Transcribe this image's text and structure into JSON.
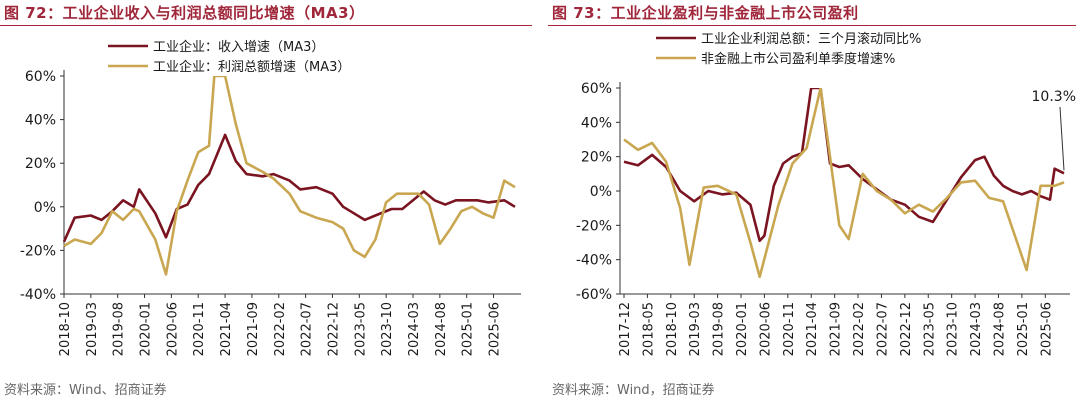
{
  "left": {
    "title": "图 72：工业企业收入与利润总额同比增速（MA3）",
    "source": "资料来源：Wind、招商证券"
  },
  "right": {
    "title": "图 73：工业企业盈利与非金融上市公司盈利",
    "source": "资料来源：Wind，招商证券"
  },
  "colors": {
    "series_a": "#7a1420",
    "series_b": "#c9a650",
    "title": "#a0263a"
  },
  "chart_data": [
    {
      "type": "line",
      "x_start": "2018-10",
      "x_end": "2025-10",
      "x_ticks": [
        "2018-10",
        "2019-03",
        "2019-08",
        "2020-01",
        "2020-06",
        "2020-11",
        "2021-04",
        "2021-09",
        "2022-02",
        "2022-07",
        "2022-12",
        "2023-05",
        "2023-10",
        "2024-03",
        "2024-08",
        "2025-01",
        "2025-06"
      ],
      "y_ticks": [
        "60%",
        "40%",
        "20%",
        "0%",
        "-20%",
        "-40%"
      ],
      "ylim": [
        -40,
        60
      ],
      "grid": false,
      "legend_position": "top-left",
      "series": [
        {
          "name": "工业企业：收入增速（MA3）",
          "color": "#7a1420",
          "points": [
            [
              "2018-10",
              -16
            ],
            [
              "2018-12",
              -5
            ],
            [
              "2019-03",
              -4
            ],
            [
              "2019-05",
              -6
            ],
            [
              "2019-07",
              -2
            ],
            [
              "2019-09",
              3
            ],
            [
              "2019-11",
              0
            ],
            [
              "2019-12",
              8
            ],
            [
              "2020-03",
              -3
            ],
            [
              "2020-05",
              -14
            ],
            [
              "2020-07",
              -1
            ],
            [
              "2020-09",
              1
            ],
            [
              "2020-11",
              10
            ],
            [
              "2021-01",
              15
            ],
            [
              "2021-04",
              33
            ],
            [
              "2021-06",
              21
            ],
            [
              "2021-08",
              15
            ],
            [
              "2021-11",
              14
            ],
            [
              "2022-01",
              15
            ],
            [
              "2022-04",
              12
            ],
            [
              "2022-06",
              8
            ],
            [
              "2022-09",
              9
            ],
            [
              "2022-12",
              6
            ],
            [
              "2023-02",
              0
            ],
            [
              "2023-04",
              -3
            ],
            [
              "2023-06",
              -6
            ],
            [
              "2023-08",
              -4
            ],
            [
              "2023-11",
              -1
            ],
            [
              "2024-01",
              -1
            ],
            [
              "2024-03",
              3
            ],
            [
              "2024-05",
              7
            ],
            [
              "2024-07",
              3
            ],
            [
              "2024-09",
              1
            ],
            [
              "2024-11",
              3
            ],
            [
              "2025-01",
              3
            ],
            [
              "2025-03",
              3
            ],
            [
              "2025-05",
              2
            ],
            [
              "2025-08",
              3
            ],
            [
              "2025-10",
              0
            ]
          ]
        },
        {
          "name": "工业企业：利润总额增速（MA3）",
          "color": "#c9a650",
          "points": [
            [
              "2018-10",
              -18
            ],
            [
              "2018-12",
              -15
            ],
            [
              "2019-03",
              -17
            ],
            [
              "2019-05",
              -12
            ],
            [
              "2019-07",
              -2
            ],
            [
              "2019-09",
              -6
            ],
            [
              "2019-11",
              -1
            ],
            [
              "2019-12",
              -2
            ],
            [
              "2020-03",
              -15
            ],
            [
              "2020-05",
              -31
            ],
            [
              "2020-07",
              -2
            ],
            [
              "2020-09",
              12
            ],
            [
              "2020-11",
              25
            ],
            [
              "2021-01",
              28
            ],
            [
              "2021-02",
              60
            ],
            [
              "2021-04",
              60
            ],
            [
              "2021-06",
              38
            ],
            [
              "2021-08",
              20
            ],
            [
              "2021-11",
              16
            ],
            [
              "2022-01",
              13
            ],
            [
              "2022-04",
              6
            ],
            [
              "2022-06",
              -2
            ],
            [
              "2022-09",
              -5
            ],
            [
              "2022-12",
              -7
            ],
            [
              "2023-02",
              -10
            ],
            [
              "2023-04",
              -20
            ],
            [
              "2023-06",
              -23
            ],
            [
              "2023-08",
              -15
            ],
            [
              "2023-10",
              2
            ],
            [
              "2023-12",
              6
            ],
            [
              "2024-02",
              6
            ],
            [
              "2024-04",
              6
            ],
            [
              "2024-06",
              1
            ],
            [
              "2024-08",
              -17
            ],
            [
              "2024-10",
              -10
            ],
            [
              "2024-12",
              -2
            ],
            [
              "2025-02",
              0
            ],
            [
              "2025-04",
              -3
            ],
            [
              "2025-06",
              -5
            ],
            [
              "2025-08",
              12
            ],
            [
              "2025-10",
              9
            ]
          ]
        }
      ]
    },
    {
      "type": "line",
      "x_start": "2017-12",
      "x_end": "2025-10",
      "x_ticks": [
        "2017-12",
        "2018-05",
        "2018-10",
        "2019-03",
        "2019-08",
        "2020-01",
        "2020-06",
        "2020-11",
        "2021-04",
        "2021-09",
        "2022-02",
        "2022-07",
        "2022-12",
        "2023-05",
        "2023-10",
        "2024-03",
        "2024-08",
        "2025-01",
        "2025-06"
      ],
      "y_ticks": [
        "60%",
        "40%",
        "20%",
        "0%",
        "-20%",
        "-40%",
        "-60%"
      ],
      "ylim": [
        -60,
        60
      ],
      "grid": false,
      "legend_position": "top-center",
      "annotation": "10.3%",
      "series": [
        {
          "name": "工业企业利润总额：三个月滚动同比%",
          "color": "#7a1420",
          "points": [
            [
              "2017-12",
              17
            ],
            [
              "2018-03",
              15
            ],
            [
              "2018-06",
              21
            ],
            [
              "2018-09",
              14
            ],
            [
              "2018-12",
              0
            ],
            [
              "2019-03",
              -6
            ],
            [
              "2019-06",
              0
            ],
            [
              "2019-09",
              -2
            ],
            [
              "2019-12",
              -1
            ],
            [
              "2020-03",
              -8
            ],
            [
              "2020-05",
              -29
            ],
            [
              "2020-06",
              -26
            ],
            [
              "2020-08",
              3
            ],
            [
              "2020-10",
              16
            ],
            [
              "2020-12",
              20
            ],
            [
              "2021-02",
              22
            ],
            [
              "2021-04",
              60
            ],
            [
              "2021-06",
              60
            ],
            [
              "2021-08",
              16
            ],
            [
              "2021-10",
              14
            ],
            [
              "2021-12",
              15
            ],
            [
              "2022-03",
              7
            ],
            [
              "2022-06",
              1
            ],
            [
              "2022-09",
              -5
            ],
            [
              "2022-12",
              -8
            ],
            [
              "2023-03",
              -15
            ],
            [
              "2023-06",
              -18
            ],
            [
              "2023-09",
              -5
            ],
            [
              "2023-12",
              8
            ],
            [
              "2024-03",
              18
            ],
            [
              "2024-05",
              20
            ],
            [
              "2024-07",
              9
            ],
            [
              "2024-09",
              3
            ],
            [
              "2024-11",
              0
            ],
            [
              "2025-01",
              -2
            ],
            [
              "2025-03",
              0
            ],
            [
              "2025-05",
              -3
            ],
            [
              "2025-07",
              -5
            ],
            [
              "2025-08",
              13
            ],
            [
              "2025-10",
              10.3
            ]
          ]
        },
        {
          "name": "非金融上市公司盈利单季度增速%",
          "color": "#c9a650",
          "points": [
            [
              "2017-12",
              30
            ],
            [
              "2018-03",
              24
            ],
            [
              "2018-06",
              28
            ],
            [
              "2018-09",
              17
            ],
            [
              "2018-12",
              -10
            ],
            [
              "2019-02",
              -43
            ],
            [
              "2019-05",
              2
            ],
            [
              "2019-08",
              3
            ],
            [
              "2019-12",
              -2
            ],
            [
              "2020-03",
              -30
            ],
            [
              "2020-05",
              -50
            ],
            [
              "2020-09",
              -8
            ],
            [
              "2020-12",
              16
            ],
            [
              "2021-03",
              25
            ],
            [
              "2021-06",
              60
            ],
            [
              "2021-08",
              20
            ],
            [
              "2021-10",
              -20
            ],
            [
              "2021-12",
              -28
            ],
            [
              "2022-03",
              10
            ],
            [
              "2022-06",
              0
            ],
            [
              "2022-09",
              -5
            ],
            [
              "2022-12",
              -13
            ],
            [
              "2023-03",
              -8
            ],
            [
              "2023-06",
              -12
            ],
            [
              "2023-09",
              -4
            ],
            [
              "2023-12",
              5
            ],
            [
              "2024-03",
              6
            ],
            [
              "2024-06",
              -4
            ],
            [
              "2024-09",
              -6
            ],
            [
              "2024-12",
              -30
            ],
            [
              "2025-02",
              -46
            ],
            [
              "2025-05",
              3
            ],
            [
              "2025-08",
              3
            ],
            [
              "2025-10",
              5
            ]
          ]
        }
      ]
    }
  ]
}
